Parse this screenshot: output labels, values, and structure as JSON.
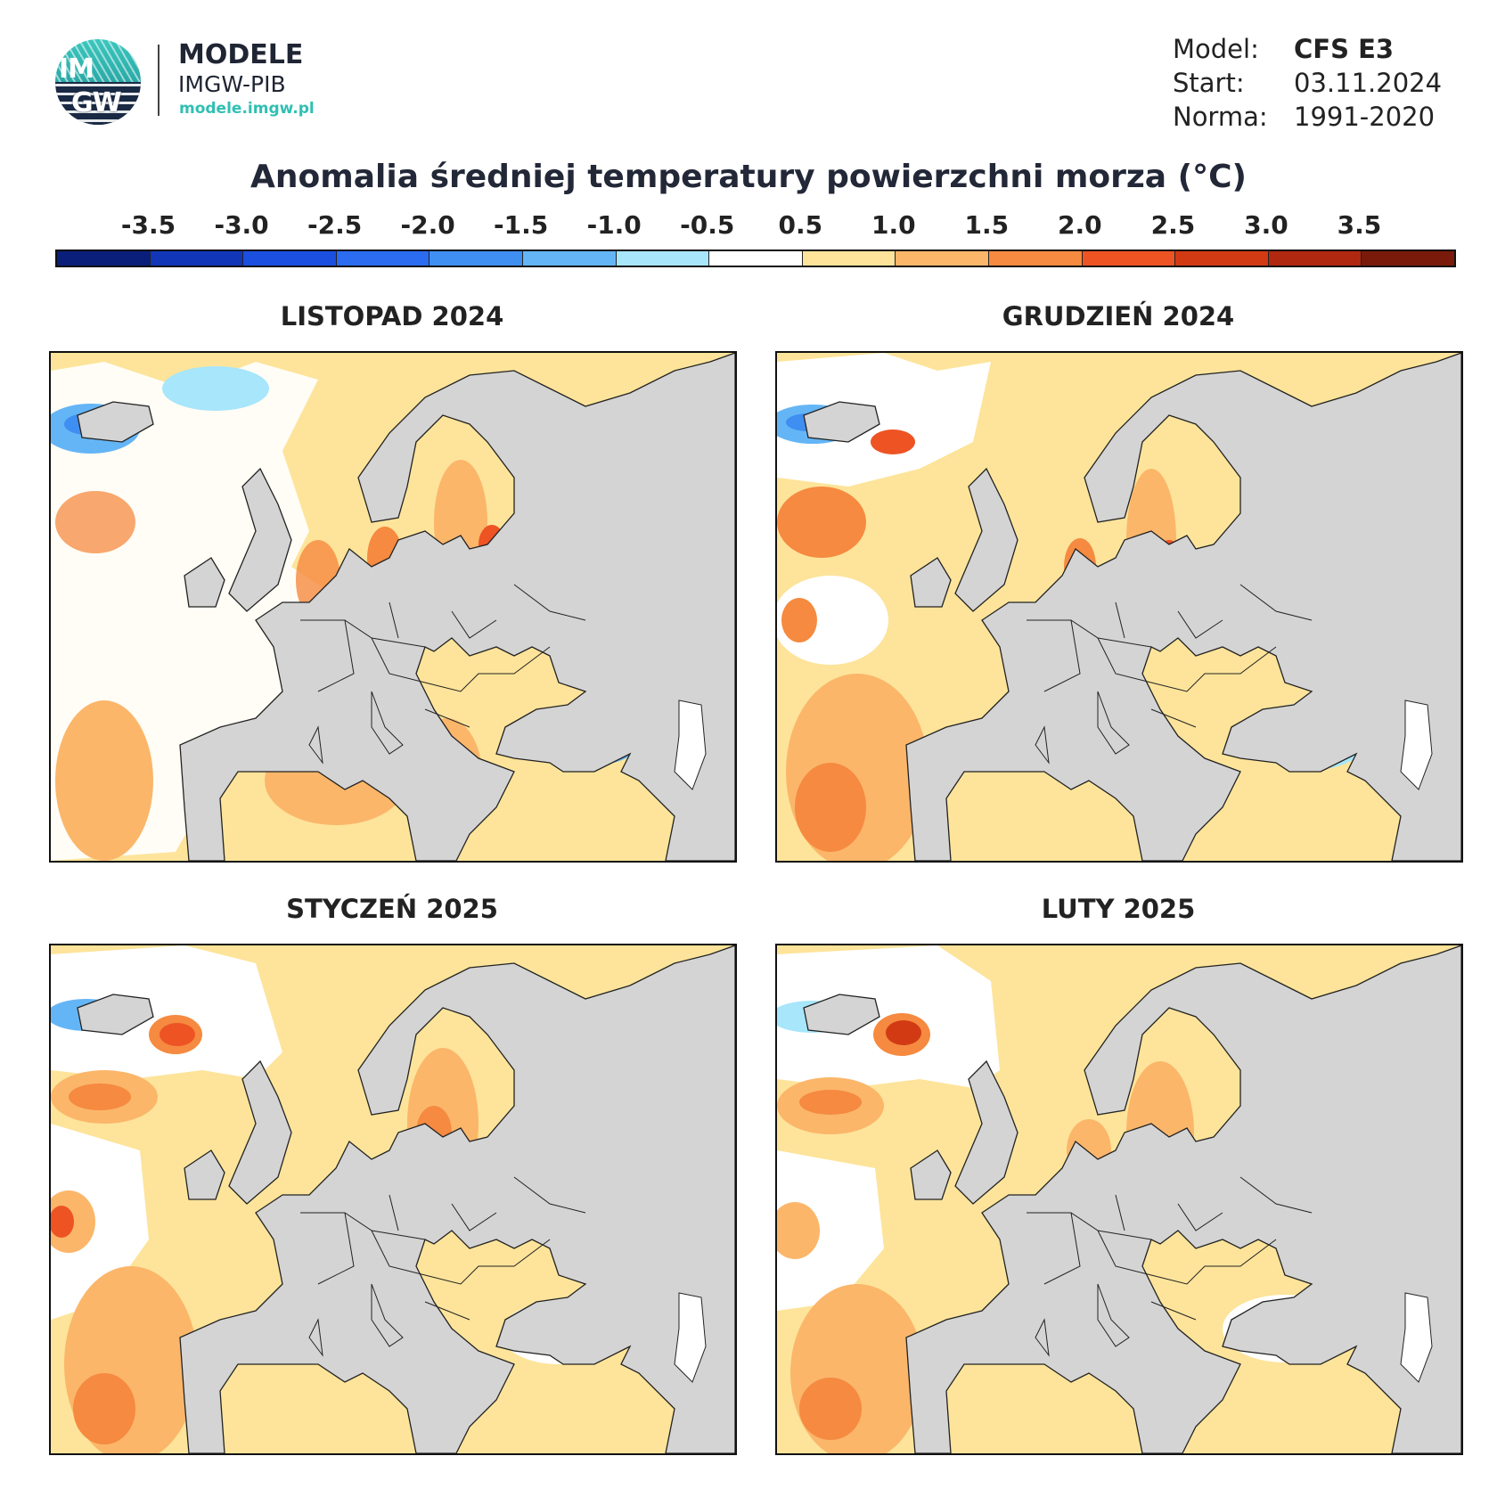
{
  "brand": {
    "line1": "MODELE",
    "line2": "IMGW-PIB",
    "url": "modele.imgw.pl",
    "logo_text_top": "IM",
    "logo_text_bottom": "GW"
  },
  "meta": [
    {
      "key": "Model:",
      "value": "CFS E3",
      "bold": true
    },
    {
      "key": "Start:",
      "value": "03.11.2024",
      "bold": false
    },
    {
      "key": "Norma:",
      "value": "1991-2020",
      "bold": false
    }
  ],
  "title": "Anomalia średniej temperatury powierzchni morza (°C)",
  "colorbar": {
    "labels": [
      "-3.5",
      "-3.0",
      "-2.5",
      "-2.0",
      "-1.5",
      "-1.0",
      "-0.5",
      "0.5",
      "1.0",
      "1.5",
      "2.0",
      "2.5",
      "3.0",
      "3.5"
    ],
    "colors": [
      "#0a1f7a",
      "#1136b8",
      "#1a4fe0",
      "#2b6cf0",
      "#3f8ef2",
      "#64b5f6",
      "#a7e6fb",
      "#ffffff",
      "#fde49a",
      "#fbb66a",
      "#f58a40",
      "#ee5324",
      "#d23a14",
      "#b02810",
      "#7a1a0a"
    ]
  },
  "panels": [
    {
      "title": "LISTOPAD 2024"
    },
    {
      "title": "GRUDZIEŃ 2024"
    },
    {
      "title": "STYCZEŃ 2025"
    },
    {
      "title": "LUTY 2025"
    }
  ],
  "map_colors": {
    "land": "#d4d4d4",
    "border": "#222222"
  }
}
